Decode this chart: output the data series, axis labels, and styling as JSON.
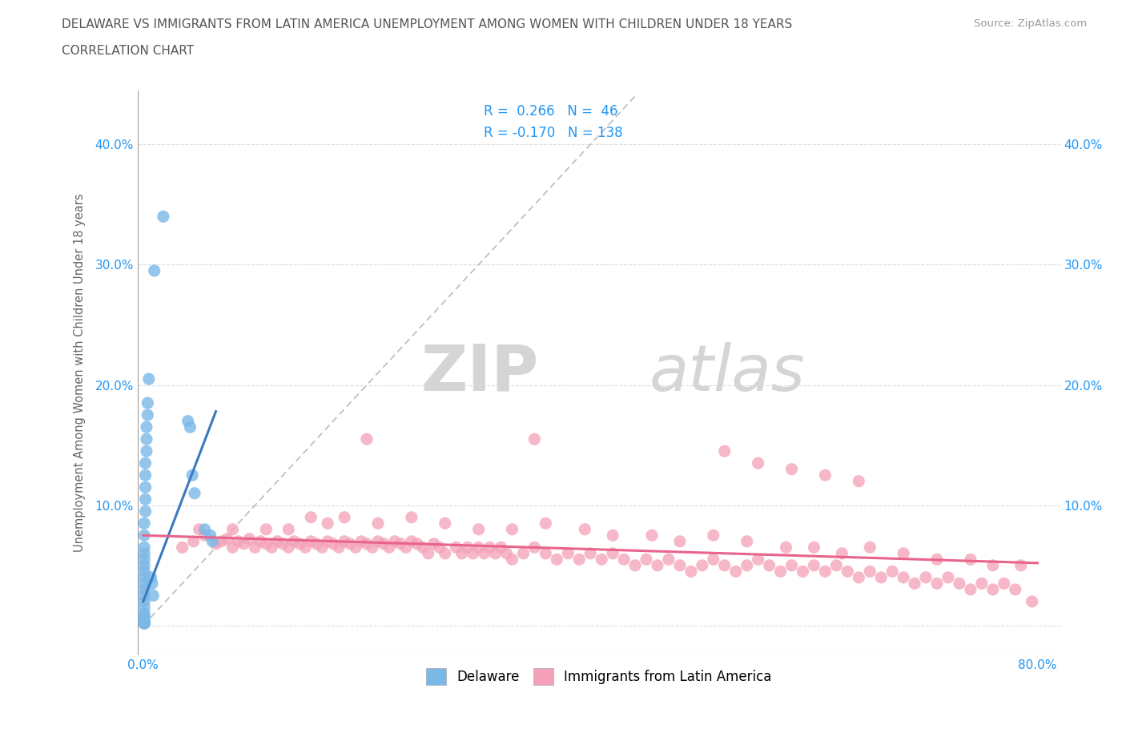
{
  "title_line1": "DELAWARE VS IMMIGRANTS FROM LATIN AMERICA UNEMPLOYMENT AMONG WOMEN WITH CHILDREN UNDER 18 YEARS",
  "title_line2": "CORRELATION CHART",
  "source_text": "Source: ZipAtlas.com",
  "ylabel": "Unemployment Among Women with Children Under 18 years",
  "xlim": [
    -0.005,
    0.82
  ],
  "ylim": [
    -0.025,
    0.445
  ],
  "background_color": "#ffffff",
  "watermark_zip": "ZIP",
  "watermark_atlas": "atlas",
  "watermark_color": "#d8d8d8",
  "blue_color": "#7ab8e8",
  "pink_color": "#f4a0b8",
  "blue_line_color": "#3a7abf",
  "pink_line_color": "#e8648a",
  "grid_color": "#dddddd",
  "title_color": "#555555",
  "axis_label_color": "#666666",
  "tick_color": "#2196F3",
  "blue_R": 0.266,
  "blue_N": 46,
  "pink_R": -0.17,
  "pink_N": 138,
  "blue_x": [
    0.018,
    0.01,
    0.005,
    0.004,
    0.004,
    0.003,
    0.003,
    0.003,
    0.002,
    0.002,
    0.002,
    0.002,
    0.002,
    0.001,
    0.001,
    0.001,
    0.001,
    0.001,
    0.001,
    0.001,
    0.001,
    0.001,
    0.001,
    0.001,
    0.001,
    0.001,
    0.001,
    0.001,
    0.001,
    0.001,
    0.001,
    0.001,
    0.001,
    0.001,
    0.001,
    0.001,
    0.04,
    0.042,
    0.044,
    0.046,
    0.055,
    0.06,
    0.062,
    0.007,
    0.008,
    0.009
  ],
  "blue_y": [
    0.34,
    0.295,
    0.205,
    0.185,
    0.175,
    0.165,
    0.155,
    0.145,
    0.135,
    0.125,
    0.115,
    0.105,
    0.095,
    0.085,
    0.075,
    0.065,
    0.06,
    0.055,
    0.05,
    0.045,
    0.04,
    0.035,
    0.03,
    0.025,
    0.02,
    0.015,
    0.01,
    0.008,
    0.006,
    0.004,
    0.002,
    0.002,
    0.002,
    0.002,
    0.002,
    0.002,
    0.17,
    0.165,
    0.125,
    0.11,
    0.08,
    0.075,
    0.07,
    0.04,
    0.035,
    0.025
  ],
  "blue_trend_x": [
    0.0,
    0.065
  ],
  "blue_trend_y": [
    0.02,
    0.178
  ],
  "pink_trend_x": [
    0.0,
    0.8
  ],
  "pink_trend_y": [
    0.075,
    0.052
  ],
  "dash_line_x": [
    0.0,
    0.44
  ],
  "dash_line_y": [
    0.0,
    0.44
  ],
  "pink_x": [
    0.035,
    0.045,
    0.055,
    0.065,
    0.07,
    0.075,
    0.08,
    0.085,
    0.09,
    0.095,
    0.1,
    0.105,
    0.11,
    0.115,
    0.12,
    0.125,
    0.13,
    0.135,
    0.14,
    0.145,
    0.15,
    0.155,
    0.16,
    0.165,
    0.17,
    0.175,
    0.18,
    0.185,
    0.19,
    0.195,
    0.2,
    0.205,
    0.21,
    0.215,
    0.22,
    0.225,
    0.23,
    0.235,
    0.24,
    0.245,
    0.25,
    0.255,
    0.26,
    0.265,
    0.27,
    0.28,
    0.285,
    0.29,
    0.295,
    0.3,
    0.305,
    0.31,
    0.315,
    0.32,
    0.325,
    0.33,
    0.34,
    0.35,
    0.36,
    0.37,
    0.38,
    0.39,
    0.4,
    0.41,
    0.42,
    0.43,
    0.44,
    0.45,
    0.46,
    0.47,
    0.48,
    0.49,
    0.5,
    0.51,
    0.52,
    0.53,
    0.54,
    0.55,
    0.56,
    0.57,
    0.58,
    0.59,
    0.6,
    0.61,
    0.62,
    0.63,
    0.64,
    0.65,
    0.66,
    0.67,
    0.68,
    0.69,
    0.7,
    0.71,
    0.72,
    0.73,
    0.74,
    0.75,
    0.76,
    0.77,
    0.78,
    0.795,
    0.05,
    0.08,
    0.11,
    0.13,
    0.15,
    0.165,
    0.18,
    0.21,
    0.24,
    0.27,
    0.3,
    0.33,
    0.36,
    0.395,
    0.42,
    0.455,
    0.48,
    0.51,
    0.54,
    0.575,
    0.6,
    0.625,
    0.65,
    0.68,
    0.71,
    0.74,
    0.76,
    0.785,
    0.2,
    0.35,
    0.52,
    0.55,
    0.58,
    0.61,
    0.64
  ],
  "pink_y": [
    0.065,
    0.07,
    0.075,
    0.068,
    0.07,
    0.072,
    0.065,
    0.07,
    0.068,
    0.072,
    0.065,
    0.07,
    0.068,
    0.065,
    0.07,
    0.068,
    0.065,
    0.07,
    0.068,
    0.065,
    0.07,
    0.068,
    0.065,
    0.07,
    0.068,
    0.065,
    0.07,
    0.068,
    0.065,
    0.07,
    0.068,
    0.065,
    0.07,
    0.068,
    0.065,
    0.07,
    0.068,
    0.065,
    0.07,
    0.068,
    0.065,
    0.06,
    0.068,
    0.065,
    0.06,
    0.065,
    0.06,
    0.065,
    0.06,
    0.065,
    0.06,
    0.065,
    0.06,
    0.065,
    0.06,
    0.055,
    0.06,
    0.065,
    0.06,
    0.055,
    0.06,
    0.055,
    0.06,
    0.055,
    0.06,
    0.055,
    0.05,
    0.055,
    0.05,
    0.055,
    0.05,
    0.045,
    0.05,
    0.055,
    0.05,
    0.045,
    0.05,
    0.055,
    0.05,
    0.045,
    0.05,
    0.045,
    0.05,
    0.045,
    0.05,
    0.045,
    0.04,
    0.045,
    0.04,
    0.045,
    0.04,
    0.035,
    0.04,
    0.035,
    0.04,
    0.035,
    0.03,
    0.035,
    0.03,
    0.035,
    0.03,
    0.02,
    0.08,
    0.08,
    0.08,
    0.08,
    0.09,
    0.085,
    0.09,
    0.085,
    0.09,
    0.085,
    0.08,
    0.08,
    0.085,
    0.08,
    0.075,
    0.075,
    0.07,
    0.075,
    0.07,
    0.065,
    0.065,
    0.06,
    0.065,
    0.06,
    0.055,
    0.055,
    0.05,
    0.05,
    0.155,
    0.155,
    0.145,
    0.135,
    0.13,
    0.125,
    0.12
  ]
}
